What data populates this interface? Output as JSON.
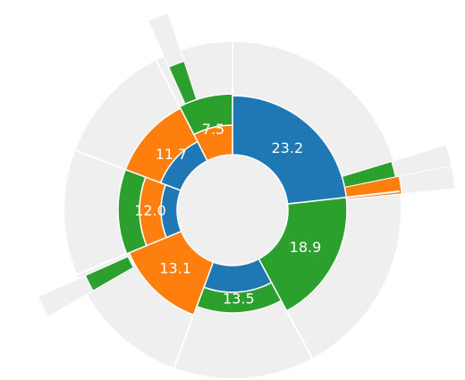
{
  "chart_data": {
    "type": "sunburst",
    "values": [
      23.2,
      18.9,
      13.5,
      13.1,
      12.0,
      11.7,
      7.5
    ],
    "value_labels": [
      "23.2",
      "18.9",
      "13.5",
      "13.1",
      "12.0",
      "11.7",
      "7.5"
    ],
    "rings": [
      [
        "#1f77b4"
      ],
      [
        "#2ca02c"
      ],
      [
        "#1f77b4",
        "#2ca02c"
      ],
      [
        "#ff7f0e"
      ],
      [
        "#1f77b4",
        "#ff7f0e",
        "#2ca02c"
      ],
      [
        "#1f77b4",
        "#ff7f0e"
      ],
      [
        "#ff7f0e",
        "#2ca02c"
      ]
    ]
  }
}
